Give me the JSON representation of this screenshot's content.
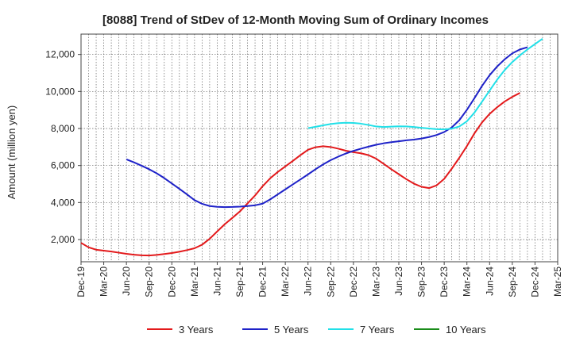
{
  "chart_data": {
    "type": "line",
    "title": "[8088]  Trend of StDev of 12-Month Moving Sum of Ordinary Incomes",
    "xlabel": "",
    "ylabel": "Amount (million yen)",
    "x_ticks": [
      "Dec-19",
      "Mar-20",
      "Jun-20",
      "Sep-20",
      "Dec-20",
      "Mar-21",
      "Jun-21",
      "Sep-21",
      "Dec-21",
      "Mar-22",
      "Jun-22",
      "Sep-22",
      "Dec-22",
      "Mar-23",
      "Jun-23",
      "Sep-23",
      "Dec-23",
      "Mar-24",
      "Jun-24",
      "Sep-24",
      "Dec-24",
      "Mar-25"
    ],
    "y_ticks": [
      2000,
      4000,
      6000,
      8000,
      10000,
      12000
    ],
    "y_tick_labels": [
      "2,000",
      "4,000",
      "6,000",
      "8,000",
      "10,000",
      "12,000"
    ],
    "ylim": [
      800,
      13100
    ],
    "series": [
      {
        "name": "3 Years",
        "color": "#e31a1c",
        "start_index": 0,
        "values": [
          1820,
          1580,
          1450,
          1400,
          1350,
          1290,
          1230,
          1180,
          1150,
          1140,
          1170,
          1220,
          1270,
          1340,
          1430,
          1530,
          1720,
          2040,
          2440,
          2830,
          3170,
          3520,
          3950,
          4380,
          4880,
          5310,
          5650,
          5950,
          6250,
          6560,
          6850,
          6990,
          7040,
          7000,
          6910,
          6800,
          6720,
          6660,
          6560,
          6370,
          6090,
          5800,
          5530,
          5260,
          5020,
          4850,
          4780,
          4930,
          5280,
          5830,
          6420,
          7050,
          7740,
          8330,
          8790,
          9150,
          9460,
          9710,
          9920
        ]
      },
      {
        "name": "5 Years",
        "color": "#1e22c8",
        "start_index": 6,
        "values": [
          6330,
          6170,
          5990,
          5800,
          5580,
          5320,
          5030,
          4740,
          4440,
          4130,
          3930,
          3810,
          3770,
          3750,
          3760,
          3780,
          3810,
          3850,
          3940,
          4170,
          4440,
          4710,
          4980,
          5250,
          5520,
          5800,
          6060,
          6290,
          6480,
          6650,
          6790,
          6910,
          7020,
          7120,
          7200,
          7260,
          7310,
          7360,
          7400,
          7460,
          7540,
          7650,
          7810,
          8060,
          8450,
          9010,
          9640,
          10300,
          10880,
          11350,
          11740,
          12060,
          12270,
          12390
        ]
      },
      {
        "name": "7 Years",
        "color": "#22e0e8",
        "start_index": 30,
        "values": [
          8020,
          8090,
          8170,
          8240,
          8290,
          8310,
          8300,
          8260,
          8190,
          8110,
          8080,
          8100,
          8120,
          8110,
          8080,
          8040,
          8000,
          7960,
          7950,
          7990,
          8110,
          8390,
          8860,
          9450,
          10050,
          10640,
          11160,
          11590,
          11950,
          12270,
          12560,
          12850
        ]
      },
      {
        "name": "10 Years",
        "color": "#1a8c1a",
        "start_index": 0,
        "values": []
      }
    ]
  }
}
